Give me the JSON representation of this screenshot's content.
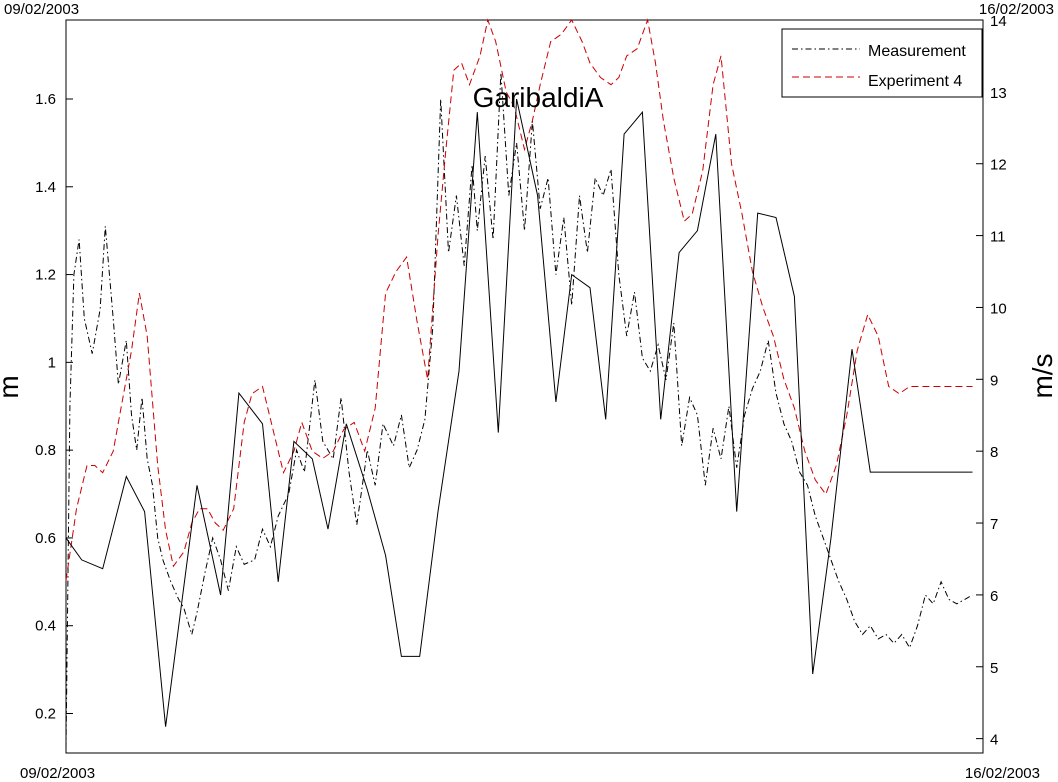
{
  "chart_data": {
    "type": "line",
    "title": "GaribaldiA",
    "ylabel_left": "m",
    "ylabel_right": "m/s",
    "date_top_left": "09/02/2003",
    "date_top_right": "16/02/2003",
    "date_bottom_left": "09/02/2003",
    "date_bottom_right": "16/02/2003",
    "x_range": [
      0,
      7
    ],
    "ylim_left": [
      0.11,
      1.78
    ],
    "ylim_right": [
      3.8,
      14.0
    ],
    "left_ticks": [
      "0.2",
      "0.4",
      "0.6",
      "0.8",
      "1",
      "1.2",
      "1.4",
      "1.6"
    ],
    "left_tick_values": [
      0.2,
      0.4,
      0.6,
      0.8,
      1.0,
      1.2,
      1.4,
      1.6
    ],
    "right_ticks": [
      "4",
      "5",
      "6",
      "7",
      "8",
      "9",
      "10",
      "11",
      "12",
      "13",
      "14"
    ],
    "right_tick_values": [
      4,
      5,
      6,
      7,
      8,
      9,
      10,
      11,
      12,
      13,
      14
    ],
    "legend": {
      "placement": "top-right",
      "entries": [
        {
          "label": "Measurement",
          "color": "#000000",
          "dash": "dashdot"
        },
        {
          "label": "Experiment 4",
          "color": "#cc0000",
          "dash": "dashed"
        }
      ]
    },
    "series": [
      {
        "name": "Measurement",
        "axis": "left",
        "color": "#000000",
        "style": "dashdot",
        "x": [
          0.0,
          0.03,
          0.06,
          0.1,
          0.14,
          0.2,
          0.26,
          0.3,
          0.36,
          0.4,
          0.46,
          0.5,
          0.54,
          0.58,
          0.62,
          0.66,
          0.7,
          0.74,
          0.8,
          0.86,
          0.9,
          0.96,
          1.0,
          1.06,
          1.12,
          1.18,
          1.24,
          1.3,
          1.36,
          1.44,
          1.5,
          1.56,
          1.62,
          1.7,
          1.76,
          1.82,
          1.9,
          1.96,
          2.04,
          2.1,
          2.16,
          2.22,
          2.3,
          2.36,
          2.42,
          2.5,
          2.56,
          2.62,
          2.68,
          2.74,
          2.8,
          2.86,
          2.92,
          2.98,
          3.04,
          3.1,
          3.14,
          3.2,
          3.26,
          3.32,
          3.38,
          3.44,
          3.5,
          3.56,
          3.62,
          3.68,
          3.74,
          3.8,
          3.86,
          3.92,
          3.98,
          4.04,
          4.1,
          4.16,
          4.22,
          4.28,
          4.34,
          4.4,
          4.46,
          4.52,
          4.58,
          4.64,
          4.7,
          4.76,
          4.82,
          4.88,
          4.94,
          5.0,
          5.06,
          5.12,
          5.18,
          5.24,
          5.3,
          5.36,
          5.42,
          5.48,
          5.54,
          5.6,
          5.66,
          5.72,
          5.78,
          5.84,
          5.9,
          5.96,
          6.02,
          6.08,
          6.14,
          6.2,
          6.26,
          6.32,
          6.38,
          6.44,
          6.5,
          6.56,
          6.62,
          6.68,
          6.74,
          6.8,
          6.86,
          6.92
        ],
        "values": [
          0.12,
          0.9,
          1.2,
          1.28,
          1.1,
          1.02,
          1.12,
          1.31,
          1.1,
          0.95,
          1.05,
          0.88,
          0.8,
          0.92,
          0.78,
          0.72,
          0.6,
          0.55,
          0.5,
          0.46,
          0.44,
          0.38,
          0.43,
          0.52,
          0.6,
          0.55,
          0.48,
          0.58,
          0.54,
          0.55,
          0.62,
          0.58,
          0.65,
          0.7,
          0.8,
          0.75,
          0.96,
          0.82,
          0.78,
          0.92,
          0.75,
          0.63,
          0.8,
          0.72,
          0.86,
          0.81,
          0.88,
          0.76,
          0.8,
          0.87,
          1.08,
          1.6,
          1.25,
          1.38,
          1.22,
          1.45,
          1.3,
          1.47,
          1.28,
          1.66,
          1.38,
          1.5,
          1.3,
          1.55,
          1.35,
          1.42,
          1.2,
          1.33,
          1.13,
          1.38,
          1.25,
          1.42,
          1.38,
          1.44,
          1.2,
          1.06,
          1.16,
          1.01,
          0.98,
          1.04,
          0.96,
          1.09,
          0.81,
          0.92,
          0.88,
          0.72,
          0.85,
          0.78,
          0.9,
          0.76,
          0.88,
          0.94,
          0.98,
          1.05,
          0.93,
          0.86,
          0.82,
          0.75,
          0.72,
          0.65,
          0.6,
          0.55,
          0.5,
          0.46,
          0.41,
          0.38,
          0.4,
          0.37,
          0.38,
          0.36,
          0.38,
          0.35,
          0.4,
          0.47,
          0.45,
          0.5,
          0.46,
          0.45,
          0.46,
          0.47
        ]
      },
      {
        "name": "Experiment 4",
        "axis": "right",
        "color": "#cc0000",
        "style": "dashed",
        "x": [
          0.0,
          0.08,
          0.16,
          0.22,
          0.28,
          0.36,
          0.42,
          0.5,
          0.56,
          0.62,
          0.7,
          0.76,
          0.82,
          0.9,
          0.96,
          1.02,
          1.08,
          1.14,
          1.2,
          1.28,
          1.36,
          1.42,
          1.5,
          1.58,
          1.66,
          1.74,
          1.8,
          1.88,
          1.96,
          2.04,
          2.12,
          2.2,
          2.28,
          2.36,
          2.44,
          2.52,
          2.6,
          2.68,
          2.76,
          2.84,
          2.9,
          2.96,
          3.02,
          3.08,
          3.16,
          3.22,
          3.28,
          3.36,
          3.42,
          3.5,
          3.56,
          3.62,
          3.7,
          3.78,
          3.86,
          3.94,
          4.0,
          4.08,
          4.16,
          4.22,
          4.28,
          4.36,
          4.44,
          4.5,
          4.56,
          4.64,
          4.72,
          4.78,
          4.86,
          4.94,
          5.0,
          5.08,
          5.16,
          5.24,
          5.32,
          5.4,
          5.48,
          5.56,
          5.64,
          5.72,
          5.8,
          5.88,
          5.96,
          6.04,
          6.12,
          6.2,
          6.28,
          6.36,
          6.44,
          6.52,
          6.6,
          6.68,
          6.76,
          6.84,
          6.92
        ],
        "values": [
          6.2,
          7.2,
          7.8,
          7.8,
          7.7,
          8.0,
          8.6,
          9.4,
          10.2,
          9.6,
          7.8,
          6.9,
          6.4,
          6.6,
          7.0,
          7.2,
          7.2,
          7.0,
          6.9,
          7.2,
          8.4,
          8.8,
          8.9,
          8.3,
          7.7,
          8.0,
          8.4,
          8.0,
          7.9,
          8.0,
          8.3,
          8.4,
          8.0,
          8.6,
          10.2,
          10.5,
          10.7,
          9.8,
          9.0,
          11.0,
          12.2,
          13.3,
          13.4,
          13.1,
          13.5,
          14.0,
          13.7,
          13.0,
          12.8,
          12.2,
          12.6,
          13.1,
          13.7,
          13.8,
          14.0,
          13.7,
          13.4,
          13.2,
          13.1,
          13.2,
          13.5,
          13.6,
          14.0,
          13.4,
          12.6,
          11.8,
          11.2,
          11.3,
          11.9,
          13.1,
          13.5,
          12.0,
          11.3,
          10.5,
          10.0,
          9.6,
          9.0,
          8.6,
          8.0,
          7.6,
          7.4,
          7.8,
          8.5,
          9.4,
          9.9,
          9.6,
          8.9,
          8.8,
          8.9,
          8.9,
          8.9,
          8.9,
          8.9,
          8.9,
          8.9
        ]
      },
      {
        "name": "",
        "axis": "left",
        "color": "#000000",
        "style": "solid",
        "x": [
          0.0,
          0.12,
          0.28,
          0.46,
          0.6,
          0.76,
          1.0,
          1.18,
          1.32,
          1.5,
          1.62,
          1.74,
          1.88,
          2.0,
          2.14,
          2.3,
          2.44,
          2.56,
          2.7,
          2.84,
          3.0,
          3.14,
          3.3,
          3.44,
          3.6,
          3.74,
          3.86,
          4.0,
          4.12,
          4.26,
          4.4,
          4.54,
          4.68,
          4.82,
          4.96,
          5.12,
          5.28,
          5.42,
          5.56,
          5.7,
          5.84,
          6.0,
          6.14,
          6.28,
          6.44,
          6.58,
          6.72,
          6.92
        ],
        "values": [
          0.6,
          0.55,
          0.53,
          0.74,
          0.66,
          0.17,
          0.72,
          0.47,
          0.93,
          0.86,
          0.5,
          0.82,
          0.78,
          0.62,
          0.86,
          0.71,
          0.56,
          0.33,
          0.33,
          0.66,
          0.98,
          1.57,
          0.84,
          1.6,
          1.38,
          0.91,
          1.2,
          1.17,
          0.87,
          1.52,
          1.57,
          0.87,
          1.25,
          1.3,
          1.52,
          0.66,
          1.34,
          1.33,
          1.15,
          0.29,
          0.6,
          1.03,
          0.75,
          0.75,
          0.75,
          0.75,
          0.75,
          0.75
        ]
      }
    ]
  }
}
